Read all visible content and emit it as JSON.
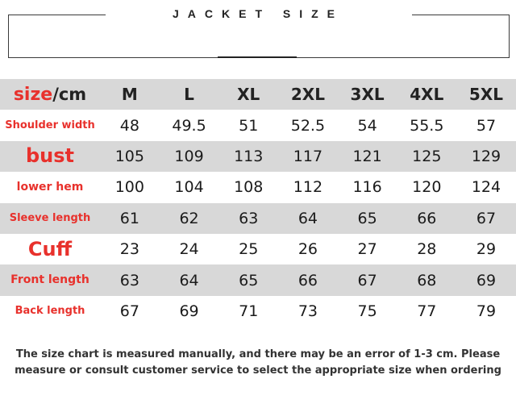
{
  "title": "JACKET SIZE",
  "header": {
    "size_word": "size",
    "unit": "/cm",
    "sizes": [
      "M",
      "L",
      "XL",
      "2XL",
      "3XL",
      "4XL",
      "5XL"
    ]
  },
  "rows": [
    {
      "label": "Shoulder width",
      "values": [
        "48",
        "49.5",
        "51",
        "52.5",
        "54",
        "55.5",
        "57"
      ]
    },
    {
      "label": "bust",
      "values": [
        "105",
        "109",
        "113",
        "117",
        "121",
        "125",
        "129"
      ]
    },
    {
      "label": "lower hem",
      "values": [
        "100",
        "104",
        "108",
        "112",
        "116",
        "120",
        "124"
      ]
    },
    {
      "label": "Sleeve length",
      "values": [
        "61",
        "62",
        "63",
        "64",
        "65",
        "66",
        "67"
      ]
    },
    {
      "label": "Cuff",
      "values": [
        "23",
        "24",
        "25",
        "26",
        "27",
        "28",
        "29"
      ]
    },
    {
      "label": "Front length",
      "values": [
        "63",
        "64",
        "65",
        "66",
        "67",
        "68",
        "69"
      ]
    },
    {
      "label": "Back length",
      "values": [
        "67",
        "69",
        "71",
        "73",
        "75",
        "77",
        "79"
      ]
    }
  ],
  "note": {
    "line1": "The size chart is measured manually, and there may be an error of 1-3 cm. Please",
    "line2": "measure or consult customer service to select the appropriate size when ordering"
  },
  "colors": {
    "accent_red": "#e8312c",
    "row_gray": "#d8d8d8"
  }
}
